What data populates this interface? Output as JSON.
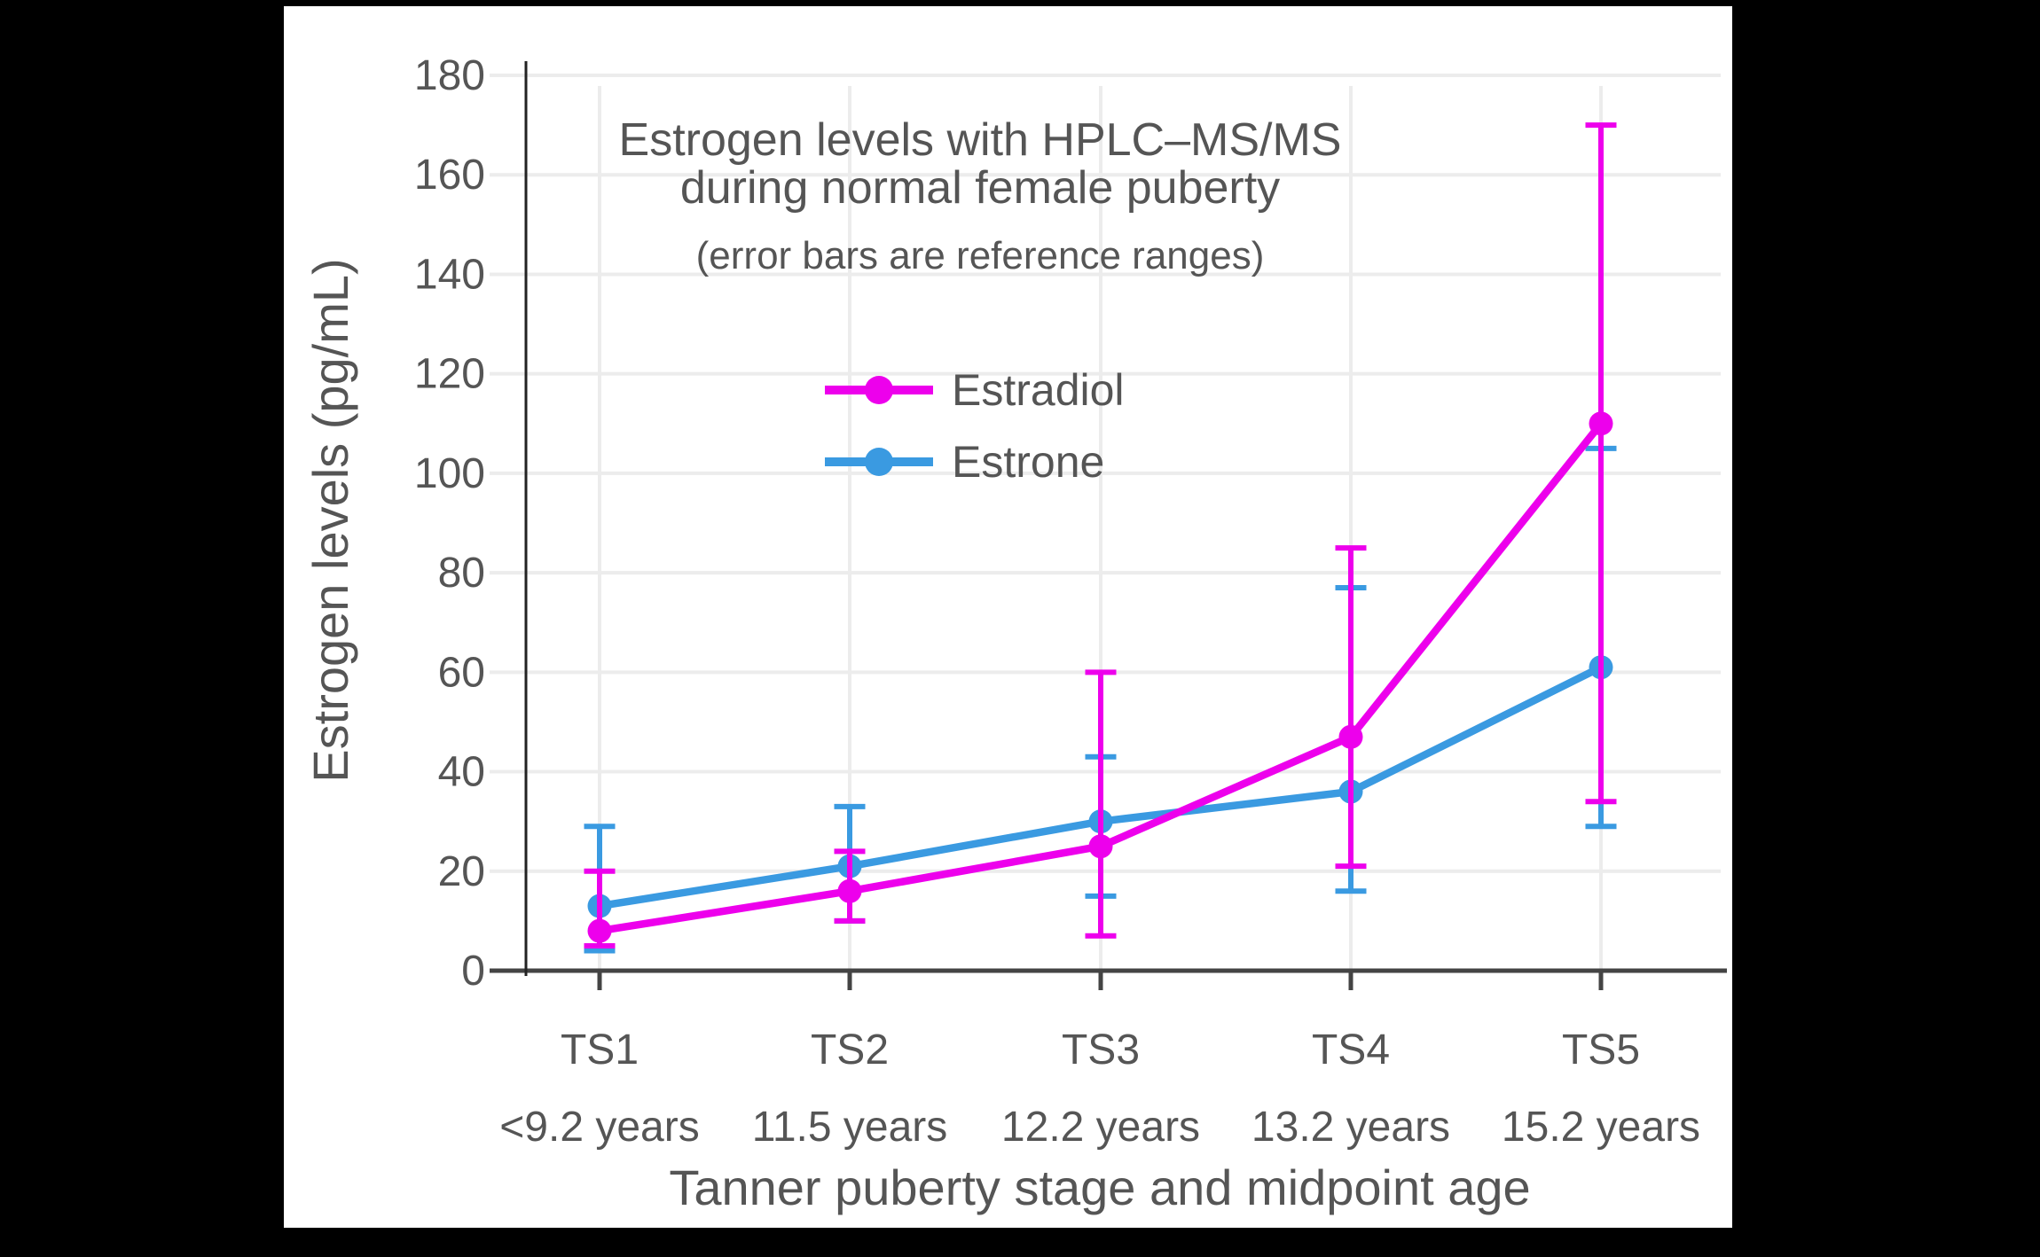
{
  "page": {
    "letterbox_color": "#000000",
    "canvas_color": "#ffffff"
  },
  "chart_data": {
    "type": "line",
    "title": "Estrogen levels with HPLC–MS/MS during normal female puberty",
    "title_lines": [
      "Estrogen levels with HPLC–MS/MS",
      "during normal female puberty"
    ],
    "subtitle": "(error bars are reference ranges)",
    "xlabel": "Tanner puberty stage and midpoint age",
    "ylabel": "Estrogen levels (pg/mL)",
    "categories": [
      "TS1",
      "TS2",
      "TS3",
      "TS4",
      "TS5"
    ],
    "category_sublabels": [
      "<9.2 years",
      "11.5 years",
      "12.2 years",
      "13.2 years",
      "15.2 years"
    ],
    "y_ticks": [
      0,
      20,
      40,
      60,
      80,
      100,
      120,
      140,
      160,
      180
    ],
    "ylim": [
      0,
      187
    ],
    "grid": true,
    "error_bar_meaning": "reference ranges",
    "legend": {
      "position": "inside-top-center",
      "entries": [
        "Estradiol",
        "Estrone"
      ]
    },
    "series": [
      {
        "name": "Estradiol",
        "color": "#ED00EC",
        "z": 2,
        "values": [
          8,
          16,
          25,
          47,
          110
        ],
        "error_low": [
          5,
          10,
          7,
          21,
          34
        ],
        "error_high": [
          20,
          24,
          60,
          85,
          170
        ]
      },
      {
        "name": "Estrone",
        "color": "#3A9AE1",
        "z": 1,
        "values": [
          13,
          21,
          30,
          36,
          61
        ],
        "error_low": [
          4,
          10,
          15,
          16,
          29
        ],
        "error_high": [
          29,
          33,
          43,
          77,
          105
        ]
      }
    ],
    "colors": {
      "text": "#555555",
      "axis": "#444444",
      "axis_line": "#222222",
      "grid": "#ececec",
      "estradiol": "#ED00EC",
      "estrone": "#3A9AE1"
    }
  }
}
